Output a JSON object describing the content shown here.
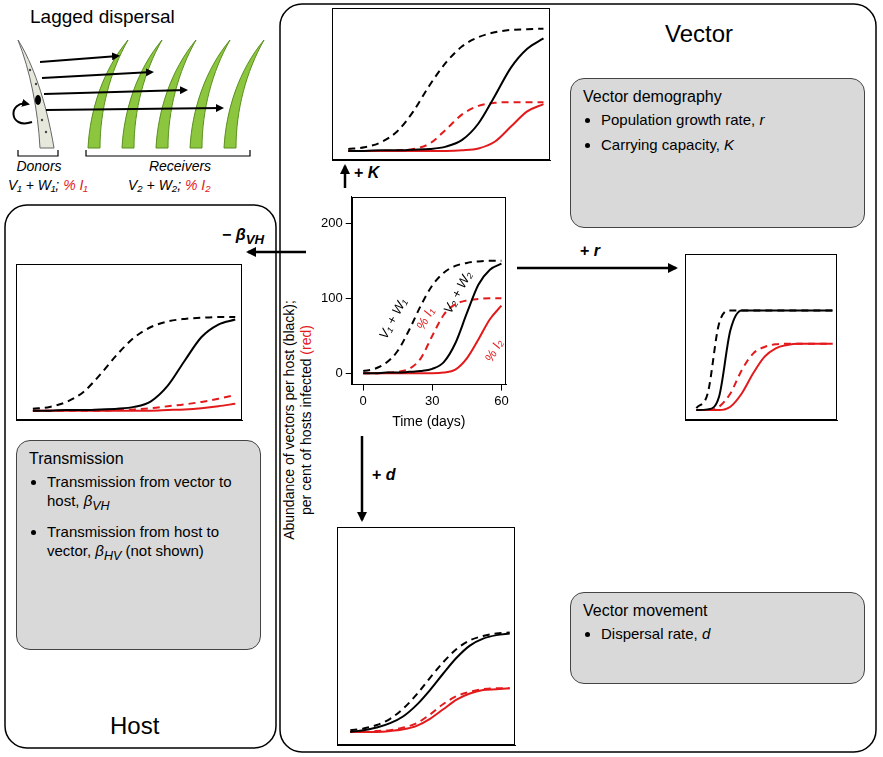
{
  "lagged_dispersal": {
    "title": "Lagged dispersal",
    "donors": {
      "label": "Donors",
      "vectors": {
        "text": "V₁ + W₁;",
        "color": "#000000"
      },
      "infected": {
        "text": "% I₁",
        "color": "#e31a1c"
      }
    },
    "receivers": {
      "label": "Receivers",
      "vectors": {
        "text": "V₂ + W₂;",
        "color": "#000000"
      },
      "infected": {
        "text": "% I₂",
        "color": "#e31a1c"
      }
    }
  },
  "vector": {
    "title": "Vector",
    "demography": {
      "title": "Vector demography",
      "items": [
        {
          "text": "Population growth rate,",
          "symbol": "r"
        },
        {
          "text": "Carrying capacity,",
          "symbol": "K"
        }
      ]
    },
    "movement": {
      "title": "Vector movement",
      "items": [
        {
          "text": "Dispersal rate,",
          "symbol": "d"
        }
      ]
    }
  },
  "host": {
    "title": "Host",
    "transmission": {
      "title": "Transmission",
      "items": [
        {
          "text": "Transmission from vector to host,",
          "symbol": "β",
          "subscript": "VH"
        },
        {
          "text": "Transmission from host to vector,",
          "symbol": "β",
          "subscript": "HV",
          "note": "(not shown)"
        }
      ]
    }
  },
  "chart_data": [
    {
      "type": "line",
      "x": [
        0,
        5,
        10,
        15,
        20,
        25,
        30,
        35,
        40,
        45,
        50,
        55,
        60
      ],
      "xlim": [
        -5,
        62
      ],
      "ylim": [
        -15,
        235
      ],
      "xticks": [
        0,
        30,
        60
      ],
      "yticks": [
        0,
        100,
        200
      ],
      "grid": false,
      "x_title": "Time (days)",
      "y_title": [
        [
          {
            "text": "Abundance of vectors per host (black);",
            "color": "#000000"
          }
        ],
        [
          {
            "text": "per cent of hosts infected",
            "color": "#000000"
          },
          {
            "text": "(red)",
            "color": "#e31a1c"
          }
        ]
      ],
      "series": [
        {
          "name": "V₁ + W₁",
          "color": "#000000",
          "line_style": "dashed",
          "values": [
            3,
            6,
            14,
            30,
            58,
            90,
            117,
            134,
            143,
            147,
            149,
            150,
            150
          ]
        },
        {
          "name": "V₂ + W₂",
          "color": "#000000",
          "line_style": "solid",
          "values": [
            0,
            0,
            1,
            1,
            2,
            3,
            6,
            15,
            40,
            80,
            118,
            138,
            146
          ]
        },
        {
          "name": "% I₁",
          "color": "#e31a1c",
          "line_style": "dashed",
          "values": [
            0,
            0,
            1,
            2,
            6,
            20,
            50,
            78,
            92,
            97,
            99,
            100,
            100
          ]
        },
        {
          "name": "% I₂",
          "color": "#e31a1c",
          "line_style": "solid",
          "values": [
            0,
            0,
            0,
            0,
            0,
            0,
            0,
            1,
            5,
            20,
            45,
            72,
            90
          ]
        }
      ]
    },
    {
      "type": "line",
      "label": {
        "sign": "+",
        "symbol": "K"
      },
      "x": [
        0,
        5,
        10,
        15,
        20,
        25,
        30,
        35,
        40,
        45,
        50,
        55,
        60
      ],
      "xlim": [
        -5,
        62
      ],
      "ylim": [
        -15,
        235
      ],
      "tick_labels": false,
      "grid": false,
      "series": [
        {
          "color": "#000000",
          "line_style": "dashed",
          "values": [
            3,
            6,
            14,
            32,
            65,
            108,
            145,
            172,
            187,
            195,
            199,
            200,
            201
          ]
        },
        {
          "color": "#000000",
          "line_style": "solid",
          "values": [
            0,
            0,
            1,
            1,
            2,
            3,
            7,
            18,
            45,
            90,
            137,
            168,
            185
          ]
        },
        {
          "color": "#e31a1c",
          "line_style": "dashed",
          "values": [
            0,
            0,
            0,
            1,
            3,
            12,
            35,
            60,
            74,
            79,
            80,
            80,
            80
          ]
        },
        {
          "color": "#e31a1c",
          "line_style": "solid",
          "values": [
            0,
            0,
            0,
            0,
            0,
            0,
            0,
            1,
            4,
            15,
            40,
            65,
            77
          ]
        }
      ]
    },
    {
      "type": "line",
      "label": {
        "sign": "+",
        "symbol": "r"
      },
      "x": [
        0,
        5,
        10,
        15,
        20,
        25,
        30,
        35,
        40,
        45,
        50,
        55,
        60
      ],
      "xlim": [
        -5,
        62
      ],
      "ylim": [
        -15,
        235
      ],
      "tick_labels": false,
      "grid": false,
      "series": [
        {
          "color": "#000000",
          "line_style": "dashed",
          "values": [
            3,
            25,
            130,
            150,
            150,
            150,
            150,
            150,
            150,
            150,
            150,
            150,
            150
          ]
        },
        {
          "color": "#000000",
          "line_style": "solid",
          "values": [
            0,
            1,
            20,
            120,
            150,
            150,
            150,
            150,
            150,
            150,
            150,
            150,
            150
          ]
        },
        {
          "color": "#e31a1c",
          "line_style": "dashed",
          "values": [
            0,
            0,
            5,
            25,
            60,
            85,
            95,
            99,
            100,
            100,
            100,
            100,
            100
          ]
        },
        {
          "color": "#e31a1c",
          "line_style": "solid",
          "values": [
            0,
            0,
            0,
            5,
            25,
            55,
            80,
            93,
            98,
            100,
            100,
            100,
            100
          ]
        }
      ]
    },
    {
      "type": "line",
      "label": {
        "sign": "+",
        "symbol": "d"
      },
      "x": [
        0,
        5,
        10,
        15,
        20,
        25,
        30,
        35,
        40,
        45,
        50,
        55,
        60
      ],
      "xlim": [
        -5,
        62
      ],
      "ylim": [
        -15,
        235
      ],
      "tick_labels": false,
      "grid": false,
      "series": [
        {
          "color": "#000000",
          "line_style": "dashed",
          "values": [
            2,
            4,
            8,
            15,
            27,
            43,
            62,
            80,
            95,
            105,
            110,
            113,
            114
          ]
        },
        {
          "color": "#000000",
          "line_style": "solid",
          "values": [
            0,
            2,
            5,
            10,
            18,
            31,
            48,
            67,
            85,
            99,
            107,
            111,
            113
          ]
        },
        {
          "color": "#e31a1c",
          "line_style": "dashed",
          "values": [
            0,
            0,
            1,
            2,
            5,
            10,
            20,
            32,
            41,
            46,
            49,
            50,
            50
          ]
        },
        {
          "color": "#e31a1c",
          "line_style": "solid",
          "values": [
            0,
            0,
            0,
            1,
            3,
            7,
            15,
            26,
            37,
            44,
            48,
            49,
            50
          ]
        }
      ]
    },
    {
      "type": "line",
      "label": {
        "sign": "−",
        "symbol": "β",
        "subscript": "VH"
      },
      "x": [
        0,
        5,
        10,
        15,
        20,
        25,
        30,
        35,
        40,
        45,
        50,
        55,
        60
      ],
      "xlim": [
        -5,
        62
      ],
      "ylim": [
        -15,
        235
      ],
      "tick_labels": false,
      "grid": false,
      "series": [
        {
          "color": "#000000",
          "line_style": "dashed",
          "values": [
            3,
            6,
            14,
            30,
            58,
            90,
            117,
            134,
            143,
            147,
            149,
            150,
            150
          ]
        },
        {
          "color": "#000000",
          "line_style": "solid",
          "values": [
            0,
            0,
            1,
            1,
            2,
            3,
            6,
            15,
            40,
            80,
            118,
            138,
            146
          ]
        },
        {
          "color": "#e31a1c",
          "line_style": "dashed",
          "values": [
            0,
            0,
            0,
            0,
            0,
            1,
            2,
            4,
            7,
            10,
            14,
            19,
            25
          ]
        },
        {
          "color": "#e31a1c",
          "line_style": "solid",
          "values": [
            0,
            0,
            0,
            0,
            0,
            0,
            0,
            0,
            1,
            2,
            4,
            7,
            11
          ]
        }
      ]
    }
  ]
}
